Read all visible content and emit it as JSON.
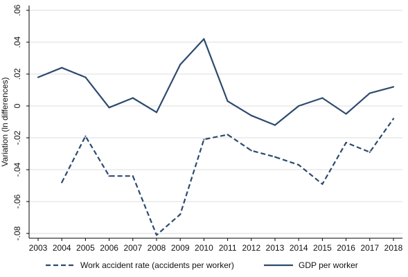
{
  "chart_data": {
    "type": "line",
    "title": "",
    "xlabel": "",
    "ylabel": "Variation (ln differences)",
    "x": [
      2003,
      2004,
      2005,
      2006,
      2007,
      2008,
      2009,
      2010,
      2011,
      2012,
      2013,
      2014,
      2015,
      2016,
      2017,
      2018
    ],
    "x_tick_labels": [
      "2003",
      "2004",
      "2005",
      "2006",
      "2007",
      "2008",
      "2009",
      "2010",
      "2011",
      "2012",
      "2013",
      "2014",
      "2015",
      "2016",
      "2017",
      "2018"
    ],
    "y_ticks": [
      0.06,
      0.04,
      0.02,
      0,
      -0.02,
      -0.04,
      -0.06,
      -0.08
    ],
    "y_tick_labels": [
      ".06",
      ".04",
      ".02",
      "0",
      "-.02",
      "-.04",
      "-.06",
      "-.08"
    ],
    "ylim": [
      -0.083,
      0.063
    ],
    "grid": true,
    "legend_position": "bottom",
    "series": [
      {
        "name": "Work accident rate (accidents per worker)",
        "style": "dashed",
        "color": "#2c4a6e",
        "values": [
          null,
          -0.048,
          -0.019,
          -0.044,
          -0.044,
          -0.081,
          -0.068,
          -0.021,
          -0.018,
          -0.028,
          -0.032,
          -0.037,
          -0.049,
          -0.023,
          -0.029,
          -0.008
        ]
      },
      {
        "name": "GDP per worker",
        "style": "solid",
        "color": "#2c4a6e",
        "values": [
          0.018,
          0.024,
          0.018,
          -0.001,
          0.005,
          -0.004,
          0.026,
          0.042,
          0.003,
          -0.006,
          -0.012,
          0.0,
          0.005,
          -0.005,
          0.008,
          0.012
        ]
      }
    ]
  }
}
